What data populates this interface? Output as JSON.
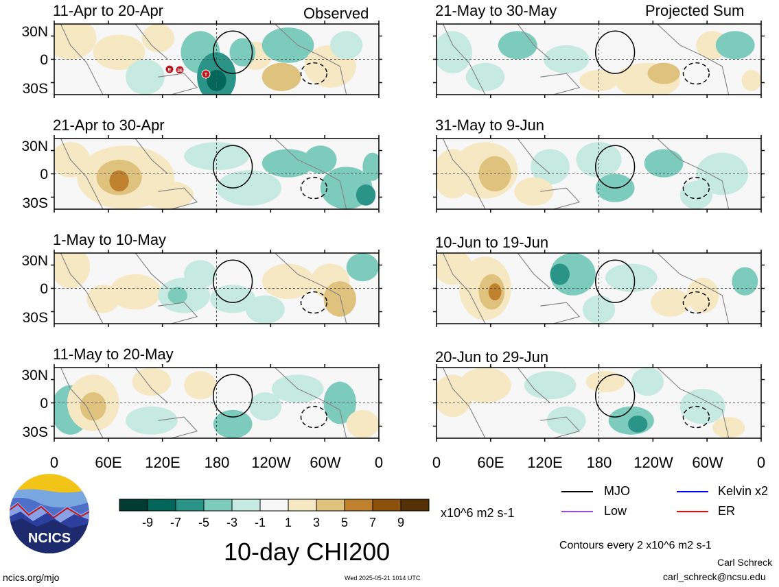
{
  "headers": {
    "observed": "Observed",
    "projected": "Projected Sum"
  },
  "panels_left": [
    {
      "label": "11-Apr to 20-Apr"
    },
    {
      "label": "21-Apr to 30-Apr"
    },
    {
      "label": "1-May to 10-May"
    },
    {
      "label": "11-May to 20-May"
    }
  ],
  "panels_right": [
    {
      "label": "21-May to 30-May"
    },
    {
      "label": "31-May to 9-Jun"
    },
    {
      "label": "10-Jun to 19-Jun"
    },
    {
      "label": "20-Jun to 29-Jun"
    }
  ],
  "y_ticks": [
    "30N",
    "0",
    "30S"
  ],
  "x_ticks": [
    "0",
    "60E",
    "120E",
    "180",
    "120W",
    "60W",
    "0"
  ],
  "colorbar": {
    "ticks": [
      "-9",
      "-7",
      "-5",
      "-3",
      "-1",
      "1",
      "3",
      "5",
      "7",
      "9"
    ],
    "units": "x10^6 m2 s-1",
    "colors": [
      "#013b33",
      "#02665a",
      "#2a9489",
      "#7ccbbd",
      "#c6eae2",
      "#f7f7f7",
      "#f6e8c3",
      "#dfc27d",
      "#bf812d",
      "#8c510a",
      "#543005"
    ]
  },
  "title": "10-day CHI200",
  "legend": {
    "mjo": "MJO",
    "kelvin": "Kelvin x2",
    "low": "Low",
    "er": "ER",
    "mjo_color": "#000000",
    "kelvin_color": "#0000ff",
    "low_color": "#a040ff",
    "er_color": "#ff0000"
  },
  "contours_note": "Contours every 2 x10^6 m2 s-1",
  "author": "Carl Schreck",
  "email": "carl_schreck@ncsu.edu",
  "site": "ncics.org/mjo",
  "timestamp": "Wed 2025-05-21 1014 UTC",
  "logo_text": "NCICS",
  "storm_markers": [
    "E",
    "36",
    "T"
  ],
  "chart_data": {
    "type": "heatmap",
    "title": "10-day CHI200",
    "units": "x10^6 m2 s-1",
    "x_ticks": [
      "0",
      "60E",
      "120E",
      "180",
      "120W",
      "60W",
      "0"
    ],
    "y_ticks": [
      "30N",
      "0",
      "30S"
    ],
    "levels": [
      -9,
      -7,
      -5,
      -3,
      -1,
      1,
      3,
      5,
      7,
      9
    ],
    "contour_interval": 2
  }
}
